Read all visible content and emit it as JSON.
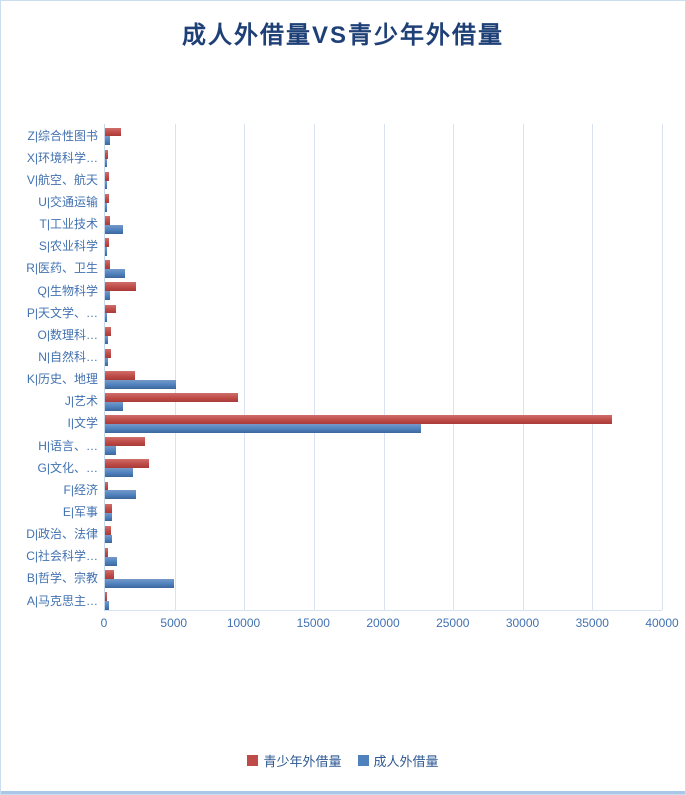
{
  "title": "成人外借量VS青少年外借量",
  "legend": [
    {
      "label": "青少年外借量",
      "color": "#BE4B48"
    },
    {
      "label": "成人外借量",
      "color": "#4F81BD"
    }
  ],
  "chart_data": {
    "type": "bar",
    "orientation": "horizontal",
    "title": "成人外借量VS青少年外借量",
    "categories": [
      "Z|综合性图书",
      "X|环境科学…",
      "V|航空、航天",
      "U|交通运输",
      "T|工业技术",
      "S|农业科学",
      "R|医药、卫生",
      "Q|生物科学",
      "P|天文学、…",
      "O|数理科…",
      "N|自然科…",
      "K|历史、地理",
      "J|艺术",
      "I|文学",
      "H|语言、…",
      "G|文化、…",
      "F|经济",
      "E|军事",
      "D|政治、法律",
      "C|社会科学…",
      "B|哲学、宗教",
      "A|马克思主…"
    ],
    "series": [
      {
        "name": "青少年外借量",
        "color": "#BE4B48",
        "values": [
          1150,
          215,
          285,
          265,
          360,
          285,
          360,
          2220,
          790,
          430,
          430,
          2170,
          9560,
          36400,
          2890,
          3150,
          215,
          480,
          410,
          235,
          645,
          165
        ]
      },
      {
        "name": "成人外借量",
        "color": "#4F81BD",
        "values": [
          360,
          140,
          145,
          165,
          1270,
          110,
          1440,
          335,
          165,
          235,
          215,
          5100,
          1270,
          22700,
          790,
          1990,
          2250,
          470,
          525,
          880,
          4950,
          265
        ]
      }
    ],
    "xlim": [
      0,
      40000
    ],
    "xticks": [
      0,
      5000,
      10000,
      15000,
      20000,
      25000,
      30000,
      35000,
      40000
    ],
    "grid": true,
    "legend_position": "bottom"
  }
}
